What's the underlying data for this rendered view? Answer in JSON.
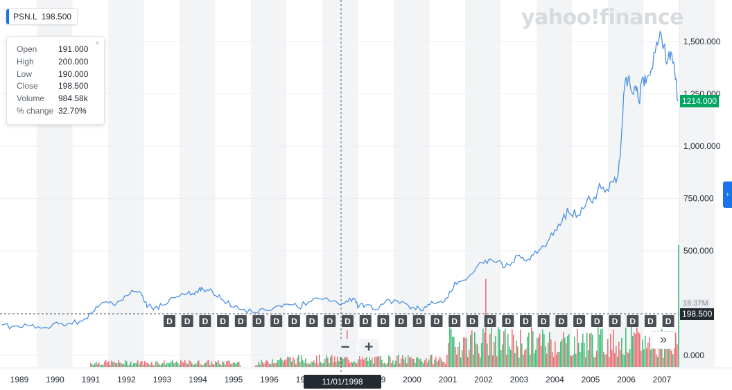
{
  "ticker": {
    "symbol": "PSN.L",
    "value": "198.500"
  },
  "brand": "yahoo!finance",
  "ohlc": [
    {
      "label": "Open",
      "value": "191.000"
    },
    {
      "label": "High",
      "value": "200.000"
    },
    {
      "label": "Low",
      "value": "190.000"
    },
    {
      "label": "Close",
      "value": "198.500"
    },
    {
      "label": "Volume",
      "value": "984.58k"
    },
    {
      "label": "% change",
      "value": "32.70%"
    }
  ],
  "close_icon": "close-x-icon",
  "current_price": "1214.000",
  "crosshair_price": "198.500",
  "crosshair_date": "11/01/1998",
  "volume_axis_label": "18.37M",
  "zoom": {
    "minus": "−",
    "plus": "+"
  },
  "more_icon": "»",
  "dividend_marker": "D",
  "colors": {
    "line": "#4a90e2",
    "accent": "#1a73e8",
    "price_tag": "#00a562",
    "vol_up": "#34b96e",
    "vol_down": "#e8636a",
    "band": "#f3f4f6"
  },
  "chart_data": {
    "type": "line",
    "x_ticks": [
      "1989",
      "1990",
      "1991",
      "1992",
      "1993",
      "1994",
      "1995",
      "1996",
      "1997",
      "1998",
      "1999",
      "2000",
      "2001",
      "2002",
      "2003",
      "2004",
      "2005",
      "2006",
      "2007"
    ],
    "y_ticks": [
      "0.000",
      "500.000",
      "750.000",
      "1,000.000",
      "1,250.000",
      "1,500.000"
    ],
    "ylim": [
      0,
      1660
    ],
    "xlim": [
      1988.5,
      2007.45
    ],
    "series": [
      {
        "x": [
          1988.5,
          1988.8,
          1989.0,
          1989.3,
          1989.6,
          1989.9,
          1990.1,
          1990.4,
          1990.7,
          1990.9,
          1991.0,
          1991.2,
          1991.4,
          1991.6,
          1991.8,
          1992.0,
          1992.2,
          1992.4,
          1992.5,
          1992.6,
          1992.8,
          1993.0,
          1993.2,
          1993.4,
          1993.7,
          1993.9,
          1994.0,
          1994.1,
          1994.3,
          1994.5,
          1994.7,
          1995.0,
          1995.3,
          1995.6,
          1995.9,
          1996.2,
          1996.5,
          1996.8,
          1997.1,
          1997.4,
          1997.8,
          1998.0,
          1998.2,
          1998.4,
          1998.5,
          1998.7,
          1998.9,
          1999.2,
          1999.5,
          1999.8,
          2000.0,
          2000.2,
          2000.4,
          2000.6,
          2000.8,
          2001.0,
          2001.2,
          2001.4,
          2001.6,
          2001.8,
          2002.0,
          2002.2,
          2002.4,
          2002.6,
          2002.8,
          2003.0,
          2003.2,
          2003.4,
          2003.6,
          2003.8,
          2004.0,
          2004.2,
          2004.4,
          2004.6,
          2004.8,
          2005.0,
          2005.2,
          2005.4,
          2005.6,
          2005.75,
          2005.85,
          2005.95,
          2006.05,
          2006.15,
          2006.25,
          2006.35,
          2006.45,
          2006.55,
          2006.7,
          2006.85,
          2006.95,
          2007.05,
          2007.15,
          2007.25,
          2007.35,
          2007.45
        ],
        "y": [
          145,
          140,
          135,
          140,
          130,
          140,
          150,
          155,
          165,
          175,
          200,
          230,
          255,
          250,
          260,
          285,
          305,
          300,
          255,
          235,
          230,
          240,
          265,
          280,
          295,
          290,
          300,
          325,
          310,
          285,
          265,
          230,
          220,
          205,
          215,
          235,
          245,
          230,
          255,
          270,
          260,
          240,
          255,
          270,
          230,
          240,
          220,
          245,
          265,
          250,
          230,
          225,
          230,
          250,
          260,
          275,
          350,
          355,
          380,
          420,
          440,
          460,
          450,
          420,
          445,
          480,
          450,
          480,
          510,
          545,
          600,
          640,
          680,
          660,
          700,
          740,
          790,
          780,
          830,
          850,
          1010,
          1280,
          1320,
          1260,
          1290,
          1210,
          1330,
          1300,
          1370,
          1500,
          1550,
          1480,
          1400,
          1450,
          1380,
          1214
        ]
      }
    ],
    "crosshair": {
      "x_label": "11/01/1998",
      "y_label": "198.500"
    },
    "last_value": 1214.0,
    "legend_position": "top-left",
    "grid": true
  }
}
